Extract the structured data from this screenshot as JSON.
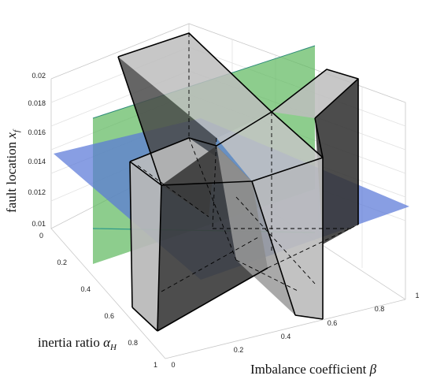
{
  "axes": {
    "z_label": "fault location",
    "z_symbol": "x",
    "z_subscript": "f",
    "y_label": "inertia ratio",
    "y_symbol": "α",
    "y_subscript": "H",
    "x_label": "Imbalance coefficient",
    "x_symbol": "β"
  },
  "z_ticks": [
    "0.01",
    "0.012",
    "0.014",
    "0.016",
    "0.018",
    "0.02"
  ],
  "y_ticks": [
    "0",
    "0.2",
    "0.4",
    "0.6",
    "0.8",
    "1"
  ],
  "x_ticks": [
    "0",
    "0.2",
    "0.4",
    "0.6",
    "0.8",
    "1"
  ],
  "colors": {
    "green_plane": "#5cb85c",
    "blue_plane": "#5a78d8",
    "solid_light": "#bdbdbd",
    "solid_dark": "#3a3a3a"
  }
}
